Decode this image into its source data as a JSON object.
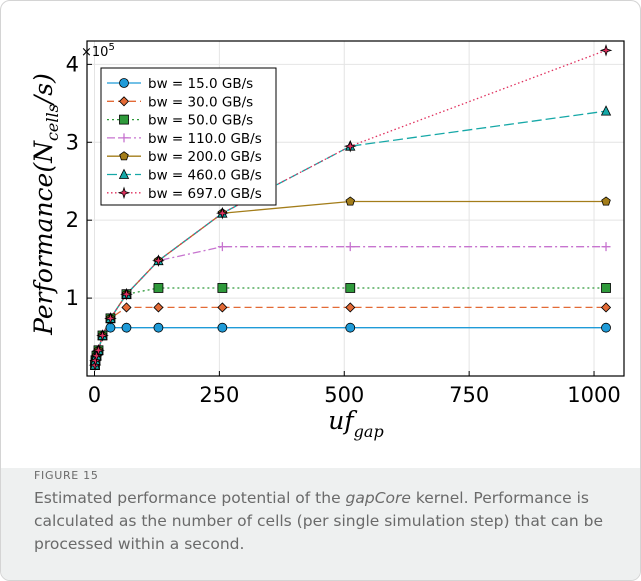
{
  "chart_data": {
    "type": "line",
    "x": [
      1,
      2,
      4,
      8,
      16,
      32,
      64,
      128,
      256,
      512,
      1024
    ],
    "xlim": [
      -15,
      1060
    ],
    "ylim": [
      0,
      430000
    ],
    "xticks": [
      0,
      250,
      500,
      750,
      1000
    ],
    "xtick_labels": [
      "0",
      "250",
      "500",
      "750",
      "1000"
    ],
    "yticks": [
      100000,
      200000,
      300000,
      400000
    ],
    "ytick_labels": [
      "1",
      "2",
      "3",
      "4"
    ],
    "exponent_label": "×10",
    "exponent_power": "5",
    "xlabel_main": "uf",
    "xlabel_sub": "gap",
    "ylabel_main": "Performance(N",
    "ylabel_sub": "cells",
    "ylabel_end": "/s)",
    "grid": true,
    "legend_position": "top-left",
    "series": [
      {
        "name": "bw = 15.0 GB/s",
        "color": "#1f9bd8",
        "marker": "circle",
        "dash": "solid",
        "values": [
          14000,
          20000,
          26000,
          33000,
          52000,
          62000,
          62000,
          62000,
          62000,
          62000,
          62000
        ]
      },
      {
        "name": "bw = 30.0 GB/s",
        "color": "#e36a36",
        "marker": "diamond",
        "dash": "dashed",
        "values": [
          14000,
          20000,
          26000,
          33000,
          52000,
          74000,
          88000,
          88000,
          88000,
          88000,
          88000
        ]
      },
      {
        "name": "bw = 50.0 GB/s",
        "color": "#2f9a3b",
        "marker": "square",
        "dash": "dotted",
        "values": [
          14000,
          20000,
          26000,
          33000,
          52000,
          74000,
          105000,
          113000,
          113000,
          113000,
          113000
        ]
      },
      {
        "name": "bw = 110.0 GB/s",
        "color": "#c774cf",
        "marker": "plus",
        "dash": "dashdot",
        "values": [
          14000,
          20000,
          26000,
          33000,
          52000,
          74000,
          105000,
          148000,
          166000,
          166000,
          166000
        ]
      },
      {
        "name": "bw = 200.0 GB/s",
        "color": "#a37d1a",
        "marker": "pentagon",
        "dash": "solid",
        "values": [
          14000,
          20000,
          26000,
          33000,
          52000,
          74000,
          105000,
          148000,
          209000,
          224000,
          224000
        ]
      },
      {
        "name": "bw = 460.0 GB/s",
        "color": "#16a8a7",
        "marker": "triangle",
        "dash": "longdash",
        "values": [
          14000,
          20000,
          26000,
          33000,
          52000,
          74000,
          105000,
          148000,
          209000,
          295000,
          340000
        ]
      },
      {
        "name": "bw = 697.0 GB/s",
        "color": "#e0305e",
        "marker": "star",
        "dash": "densedot",
        "values": [
          14000,
          20000,
          26000,
          33000,
          52000,
          74000,
          105000,
          148000,
          209000,
          295000,
          418000
        ]
      }
    ]
  },
  "caption": {
    "figure_label": "FIGURE 15",
    "text_before": "Estimated performance potential of the ",
    "text_emphasis": "gapCore",
    "text_after": " kernel. Performance is calculated as the number of cells (per single simulation step) that can be processed within a second."
  }
}
